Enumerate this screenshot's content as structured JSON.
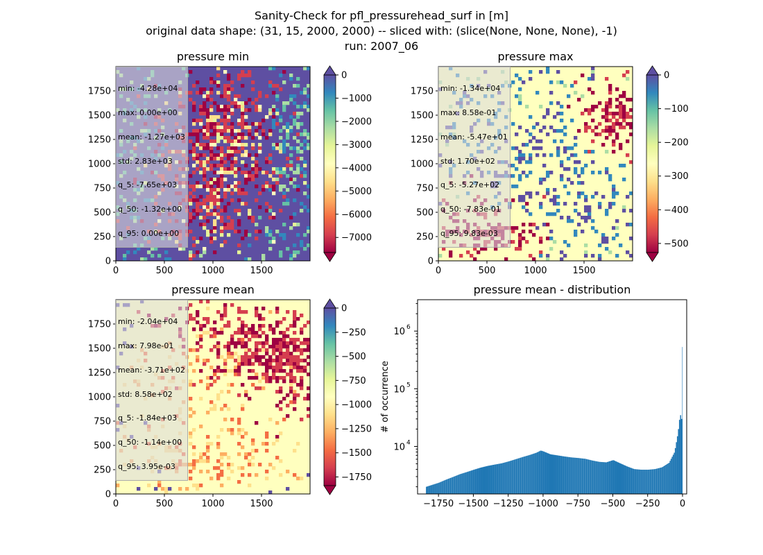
{
  "figure": {
    "title_lines": [
      "Sanity-Check for pfl_pressurehead_surf in [m]",
      "original data shape: (31, 15, 2000, 2000) -- sliced with: (slice(None, None, None), -1)",
      "run: 2007_06"
    ]
  },
  "panels": {
    "min": {
      "title": "pressure min",
      "stats": [
        "min: -4.28e+04",
        "max: 0.00e+00",
        "mean: -1.27e+03",
        "std: 2.83e+03",
        "q_5: -7.65e+03",
        "q_50: -1.32e+00",
        "q_95: 0.00e+00"
      ],
      "x_ticks": [
        "0",
        "500",
        "1000",
        "1500"
      ],
      "y_ticks": [
        "0",
        "250",
        "500",
        "750",
        "1000",
        "1250",
        "1500",
        "1750"
      ],
      "colorbar_ticks": [
        "0",
        "−1000",
        "−2000",
        "−3000",
        "−4000",
        "−5000",
        "−6000",
        "−7000"
      ],
      "colorbar_range": [
        -7650,
        0
      ]
    },
    "max": {
      "title": "pressure max",
      "stats": [
        "min: -1.34e+04",
        "max: 8.58e-01",
        "mean: -5.47e+01",
        "std: 1.70e+02",
        "q_5: -5.27e+02",
        "q_50: -7.83e-01",
        "q_95: 9.83e-03"
      ],
      "x_ticks": [
        "0",
        "500",
        "1000",
        "1500"
      ],
      "y_ticks": [
        "0",
        "250",
        "500",
        "750",
        "1000",
        "1250",
        "1500",
        "1750"
      ],
      "colorbar_ticks": [
        "0",
        "−100",
        "−200",
        "−300",
        "−400",
        "−500"
      ],
      "colorbar_range": [
        -527,
        0.0098
      ]
    },
    "mean": {
      "title": "pressure mean",
      "stats": [
        "min: -2.04e+04",
        "max: 7.98e-01",
        "mean: -3.71e+02",
        "std: 8.58e+02",
        "q_5: -1.84e+03",
        "q_50: -1.14e+00",
        "q_95: 3.95e-03"
      ],
      "x_ticks": [
        "0",
        "500",
        "1000",
        "1500"
      ],
      "y_ticks": [
        "0",
        "250",
        "500",
        "750",
        "1000",
        "1250",
        "1500",
        "1750"
      ],
      "colorbar_ticks": [
        "0",
        "−250",
        "−500",
        "−750",
        "−1000",
        "−1250",
        "−1500",
        "−1750"
      ],
      "colorbar_range": [
        -1840,
        0.004
      ]
    },
    "hist": {
      "title": "pressure mean - distribution",
      "ylabel": "# of occurrence",
      "x_ticks": [
        "−1750",
        "−1500",
        "−1250",
        "−1000",
        "−750",
        "−500",
        "−250",
        "0"
      ],
      "y_ticks": [
        "10",
        "10",
        "10"
      ],
      "y_tick_exps": [
        "4",
        "5",
        "6"
      ]
    }
  },
  "chart_data": [
    {
      "type": "heatmap",
      "title": "pressure min",
      "xlim": [
        0,
        2000
      ],
      "ylim": [
        0,
        2000
      ],
      "colormap": "Spectral",
      "clim": [
        -7650,
        0
      ],
      "extend": "both"
    },
    {
      "type": "heatmap",
      "title": "pressure max",
      "xlim": [
        0,
        2000
      ],
      "ylim": [
        0,
        2000
      ],
      "colormap": "Spectral",
      "clim": [
        -527,
        0.0098
      ],
      "extend": "both"
    },
    {
      "type": "heatmap",
      "title": "pressure mean",
      "xlim": [
        0,
        2000
      ],
      "ylim": [
        0,
        2000
      ],
      "colormap": "Spectral",
      "clim": [
        -1840,
        0.004
      ],
      "extend": "both"
    },
    {
      "type": "bar",
      "title": "pressure mean - distribution",
      "ylabel": "# of occurrence",
      "yscale": "log",
      "xlim": [
        -1900,
        30
      ],
      "ylim": [
        1500,
        3500000
      ],
      "x": [
        -1840,
        -1800,
        -1750,
        -1700,
        -1650,
        -1600,
        -1550,
        -1500,
        -1450,
        -1400,
        -1350,
        -1300,
        -1250,
        -1200,
        -1150,
        -1100,
        -1050,
        -1020,
        -1000,
        -950,
        -900,
        -850,
        -800,
        -750,
        -700,
        -650,
        -600,
        -550,
        -500,
        -450,
        -400,
        -350,
        -300,
        -250,
        -200,
        -150,
        -100,
        -60,
        -40,
        -30,
        -20,
        -15,
        -10,
        -5,
        -1
      ],
      "values": [
        2000,
        2150,
        2350,
        2650,
        2950,
        3300,
        3600,
        3950,
        4300,
        4600,
        4850,
        5100,
        5500,
        6000,
        6550,
        7100,
        7800,
        8500,
        8200,
        7300,
        7000,
        6700,
        6450,
        6300,
        6100,
        5700,
        5400,
        5300,
        5800,
        5100,
        4500,
        4050,
        3950,
        3950,
        4050,
        4350,
        5200,
        8000,
        15000,
        22000,
        38000,
        32000,
        30000,
        40000,
        2500000
      ]
    }
  ]
}
